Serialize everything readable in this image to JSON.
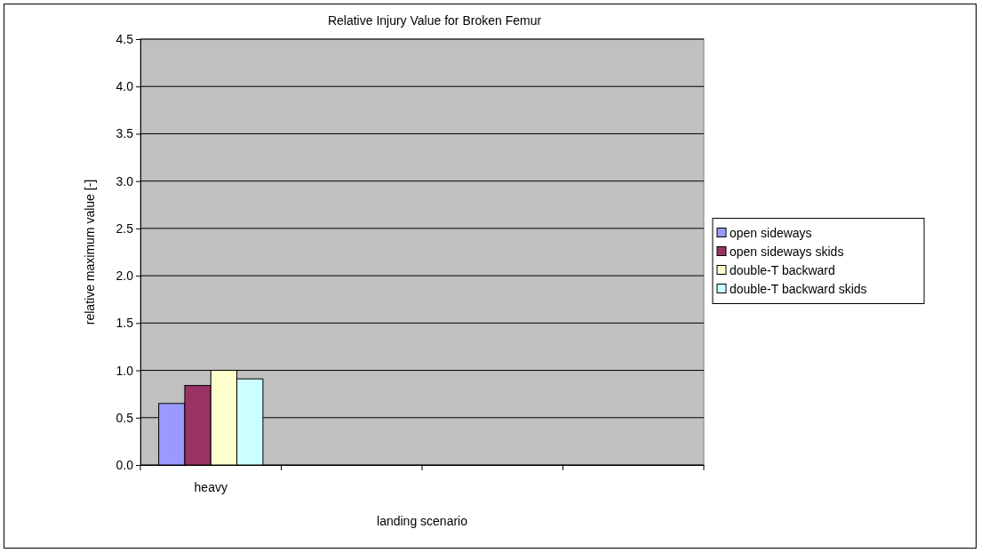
{
  "chart_data": {
    "type": "bar",
    "title": "Relative Injury Value for Broken Femur",
    "xlabel": "landing scenario",
    "ylabel": "relative maximum value [-]",
    "categories": [
      "heavy",
      null,
      null,
      null
    ],
    "series": [
      {
        "name": "open sideways",
        "color": "#9999ff",
        "values": [
          0.65,
          null,
          null,
          null
        ]
      },
      {
        "name": "open sideways skids",
        "color": "#993366",
        "values": [
          0.84,
          null,
          null,
          null
        ]
      },
      {
        "name": "double-T backward",
        "color": "#ffffcc",
        "values": [
          1.0,
          null,
          null,
          null
        ]
      },
      {
        "name": "double-T backward skids",
        "color": "#ccffff",
        "values": [
          0.91,
          null,
          null,
          null
        ]
      }
    ],
    "ylim": [
      0,
      4.5
    ],
    "yticks": [
      {
        "value": 0,
        "label": "0.0"
      },
      {
        "value": 0.5,
        "label": "0.5"
      },
      {
        "value": 1,
        "label": "1.0"
      },
      {
        "value": 1.5,
        "label": "1.5"
      },
      {
        "value": 2,
        "label": "2.0"
      },
      {
        "value": 2.5,
        "label": "2.5"
      },
      {
        "value": 3,
        "label": "3.0"
      },
      {
        "value": 3.5,
        "label": "3.5"
      },
      {
        "value": 4,
        "label": "4.0"
      },
      {
        "value": 4.5,
        "label": "4.5"
      }
    ],
    "grid": "y",
    "legend": "right"
  }
}
